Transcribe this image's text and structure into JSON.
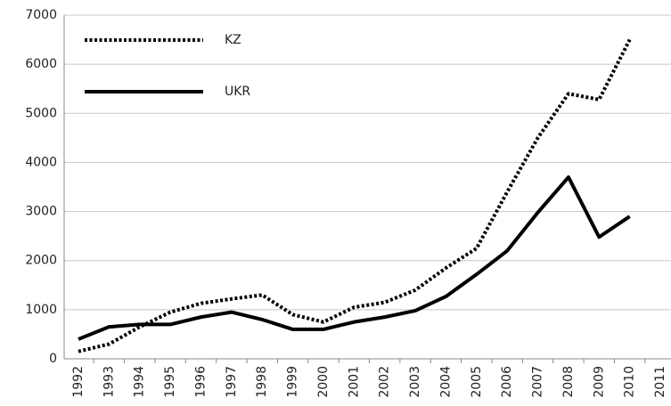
{
  "chart_data": {
    "type": "line",
    "categories": [
      "1992",
      "1993",
      "1994",
      "1995",
      "1996",
      "1997",
      "1998",
      "1999",
      "2000",
      "2001",
      "2002",
      "2003",
      "2004",
      "2005",
      "2006",
      "2007",
      "2008",
      "2009",
      "2010",
      "2011"
    ],
    "series": [
      {
        "name": "KZ",
        "color": "#000000",
        "style": "dotted",
        "values": [
          150,
          300,
          650,
          950,
          1130,
          1220,
          1300,
          900,
          750,
          1050,
          1150,
          1400,
          1850,
          2250,
          3400,
          4500,
          5400,
          5280,
          6500,
          null
        ]
      },
      {
        "name": "UKR",
        "color": "#000000",
        "style": "solid",
        "values": [
          400,
          650,
          700,
          700,
          850,
          950,
          800,
          600,
          600,
          750,
          850,
          980,
          1270,
          1720,
          2200,
          2980,
          3700,
          2480,
          2900,
          null
        ]
      }
    ],
    "ylim": [
      0,
      7000
    ],
    "yticks": [
      0,
      1000,
      2000,
      3000,
      4000,
      5000,
      6000,
      7000
    ],
    "grid": true,
    "legend": "top-left"
  }
}
